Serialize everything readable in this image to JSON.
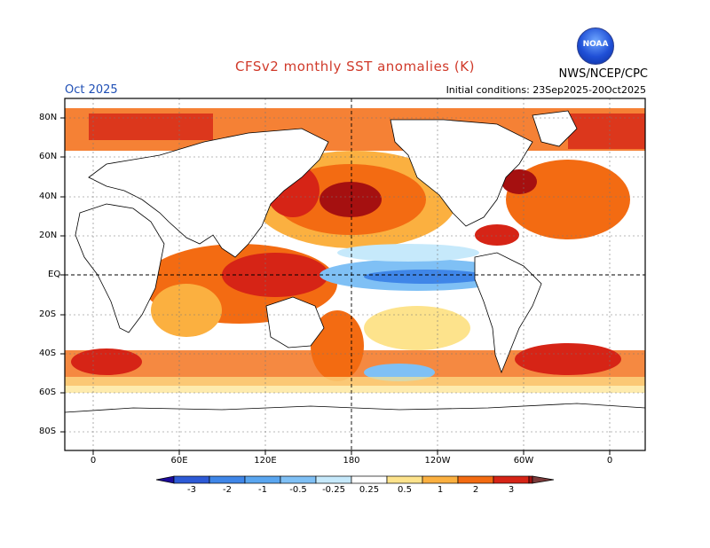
{
  "header": {
    "title": "CFSv2 monthly SST anomalies (K)",
    "month": "Oct 2025",
    "initial_conditions": "Initial conditions: 23Sep2025-20Oct2025",
    "agency": "NWS/NCEP/CPC",
    "logo_text": "NOAA"
  },
  "axes": {
    "lat_labels": [
      "80N",
      "60N",
      "40N",
      "20N",
      "EQ",
      "20S",
      "40S",
      "60S",
      "80S"
    ],
    "lon_labels": [
      "0",
      "60E",
      "120E",
      "180",
      "120W",
      "60W",
      "0"
    ]
  },
  "colorbar": {
    "ticks": [
      "-3",
      "-2",
      "-1",
      "-0.5",
      "-0.25",
      "0.25",
      "0.5",
      "1",
      "2",
      "3"
    ],
    "colors": [
      "#1c0a9a",
      "#2d5ad6",
      "#3f86e8",
      "#7fc0f5",
      "#c6e9fb",
      "#ffffff",
      "#fde38c",
      "#fbb040",
      "#f36b12",
      "#d62416",
      "#a51010",
      "#7a3a3a"
    ]
  }
}
